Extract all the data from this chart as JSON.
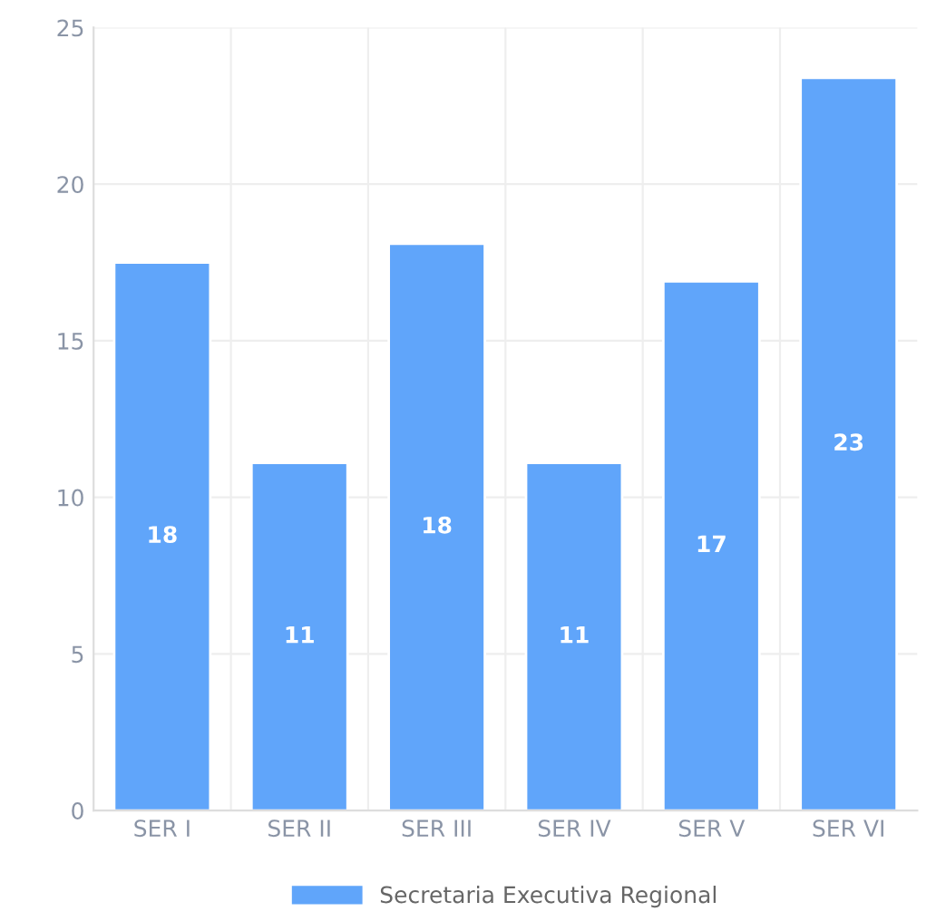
{
  "chart_data": {
    "type": "bar",
    "categories": [
      "SER I",
      "SER II",
      "SER III",
      "SER IV",
      "SER V",
      "SER VI"
    ],
    "series": [
      {
        "name": "Secretaria Executiva Regional",
        "color": "#60a5fa",
        "values": [
          17.5,
          11.1,
          18.1,
          11.1,
          16.9,
          23.4
        ],
        "value_labels": [
          "18",
          "11",
          "18",
          "11",
          "17",
          "23"
        ]
      }
    ],
    "ylim": [
      0,
      25
    ],
    "yticks": [
      0,
      5,
      10,
      15,
      20,
      25
    ],
    "grid": true,
    "legend": "bottom"
  }
}
